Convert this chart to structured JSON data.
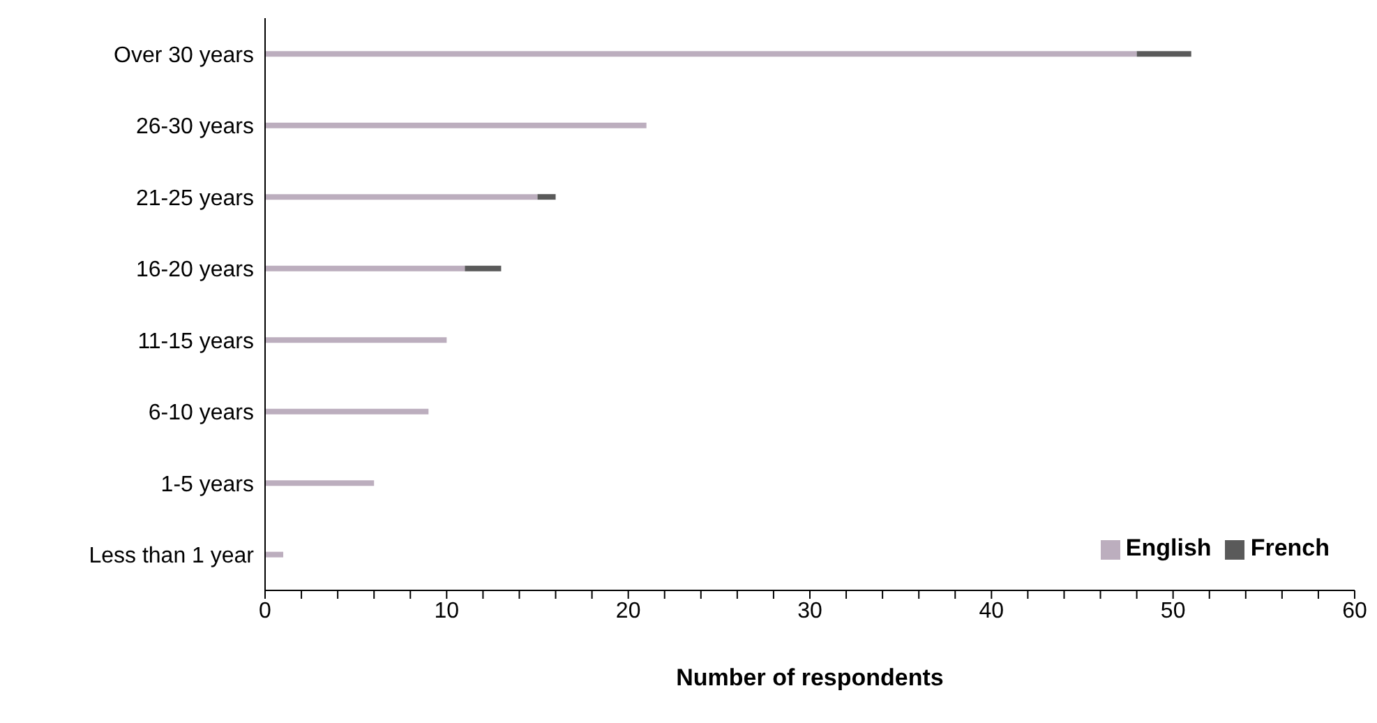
{
  "chart_data": {
    "type": "bar",
    "orientation": "horizontal",
    "stacked": true,
    "xlabel": "Number of respondents",
    "categories": [
      "Over 30 years",
      "26-30 years",
      "21-25 years",
      "16-20 years",
      "11-15 years",
      "6-10 years",
      "1-5 years",
      "Less than 1 year"
    ],
    "series": [
      {
        "name": "English",
        "color": "#bcaebe",
        "values": [
          48,
          21,
          15,
          11,
          10,
          9,
          6,
          1
        ]
      },
      {
        "name": "French",
        "color": "#5a5a5a",
        "values": [
          3,
          0,
          1,
          2,
          0,
          0,
          0,
          0
        ]
      }
    ],
    "xlim": [
      0,
      60
    ],
    "xticks": [
      0,
      {
        "value": 2,
        "label": null
      },
      {
        "value": 4,
        "label": null
      },
      {
        "value": 6,
        "label": null
      },
      {
        "value": 8,
        "label": null
      },
      10,
      {
        "value": 12,
        "label": null
      },
      {
        "value": 14,
        "label": null
      },
      {
        "value": 16,
        "label": null
      },
      {
        "value": 18,
        "label": null
      },
      20,
      {
        "value": 22,
        "label": null
      },
      {
        "value": 24,
        "label": null
      },
      {
        "value": 26,
        "label": null
      },
      {
        "value": 28,
        "label": null
      },
      30,
      {
        "value": 32,
        "label": null
      },
      {
        "value": 34,
        "label": null
      },
      {
        "value": 36,
        "label": null
      },
      {
        "value": 38,
        "label": null
      },
      40,
      {
        "value": 42,
        "label": null
      },
      {
        "value": 44,
        "label": null
      },
      {
        "value": 46,
        "label": null
      },
      {
        "value": 48,
        "label": null
      },
      50,
      {
        "value": 52,
        "label": null
      },
      {
        "value": 54,
        "label": null
      },
      {
        "value": 56,
        "label": null
      },
      {
        "value": 58,
        "label": null
      },
      60
    ],
    "grid": false,
    "legend": "bottom right"
  }
}
